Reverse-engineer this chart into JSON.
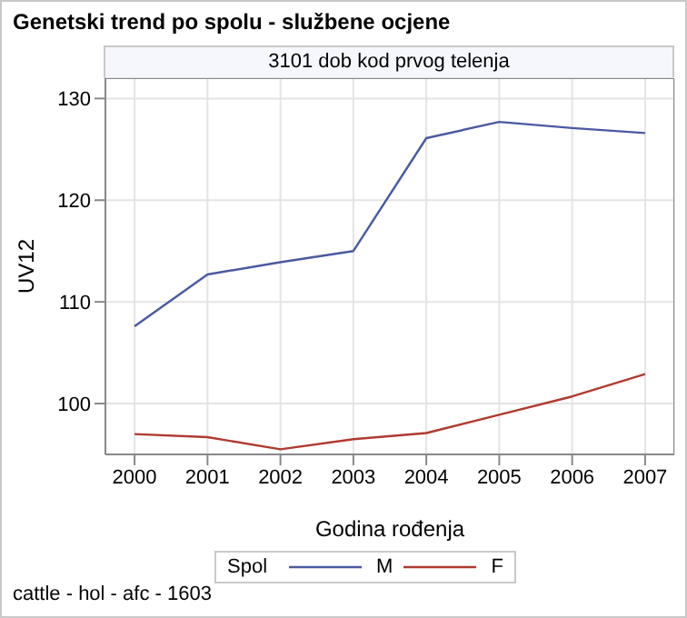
{
  "chart_data": {
    "type": "line",
    "title": "Genetski trend po spolu - službene ocjene",
    "subtitle": "3101 dob kod prvog telenja",
    "xlabel": "Godina rođenja",
    "ylabel": "UV12",
    "legend_title": "Spol",
    "annotations": [
      "cattle - hol - afc - 1603"
    ],
    "x": [
      2000,
      2001,
      2002,
      2003,
      2004,
      2005,
      2006,
      2007
    ],
    "series": [
      {
        "name": "M",
        "color": "#4a5aa0",
        "values": [
          107.6,
          112.7,
          113.9,
          115.0,
          126.1,
          127.7,
          127.1,
          126.6
        ]
      },
      {
        "name": "F",
        "color": "#b03a30",
        "values": [
          97.0,
          96.7,
          95.5,
          96.5,
          97.1,
          98.9,
          100.7,
          102.9
        ]
      }
    ],
    "xlim": [
      1999.6,
      2007.4
    ],
    "xticks": [
      2000,
      2001,
      2002,
      2003,
      2004,
      2005,
      2006,
      2007
    ],
    "ylim": [
      95,
      132
    ],
    "yticks": [
      100,
      110,
      120,
      130
    ],
    "grid": true,
    "legend": "bottom",
    "marker": "none",
    "line_style": "solid"
  }
}
